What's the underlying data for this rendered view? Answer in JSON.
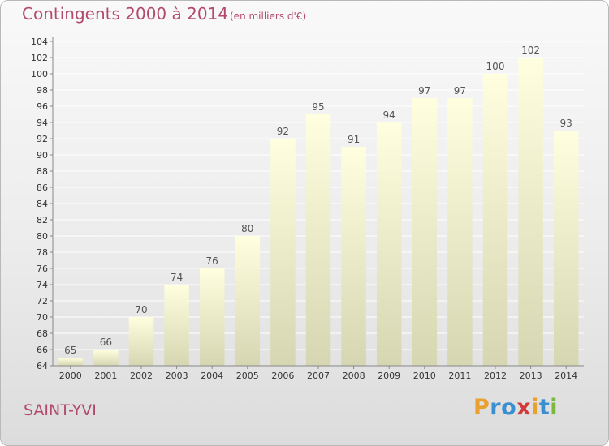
{
  "header": {
    "title": "Contingents 2000 à 2014",
    "subtitle": "(en milliers d'€)"
  },
  "footer": {
    "place": "SAINT-YVI",
    "logo": {
      "letters": [
        "P",
        "r",
        "o",
        "x",
        "i",
        "t",
        "i"
      ],
      "colors": [
        "#e8a030",
        "#3a8fd0",
        "#3a8fd0",
        "#d03a3a",
        "#e8a030",
        "#3a8fd0",
        "#7ab840"
      ]
    }
  },
  "chart_data": {
    "type": "bar",
    "categories": [
      "2000",
      "2001",
      "2002",
      "2003",
      "2004",
      "2005",
      "2006",
      "2007",
      "2008",
      "2009",
      "2010",
      "2011",
      "2012",
      "2013",
      "2014"
    ],
    "values": [
      65,
      66,
      70,
      74,
      76,
      80,
      92,
      95,
      91,
      94,
      97,
      97,
      100,
      102,
      93
    ],
    "data_labels": [
      "65",
      "66",
      "70",
      "74",
      "76",
      "80",
      "92",
      "95",
      "91",
      "94",
      "97",
      "97",
      "100",
      "102",
      "93"
    ],
    "ylim": [
      64,
      104
    ],
    "yticks": [
      "64",
      "66",
      "68",
      "70",
      "72",
      "74",
      "76",
      "78",
      "80",
      "82",
      "84",
      "86",
      "88",
      "90",
      "92",
      "94",
      "96",
      "98",
      "100",
      "102",
      "104"
    ],
    "grid": true,
    "colors": {
      "bar_top": "#ffffe0",
      "bar_bottom": "#d6d6b2",
      "label": "#555555",
      "grid": "#ffffff"
    }
  }
}
